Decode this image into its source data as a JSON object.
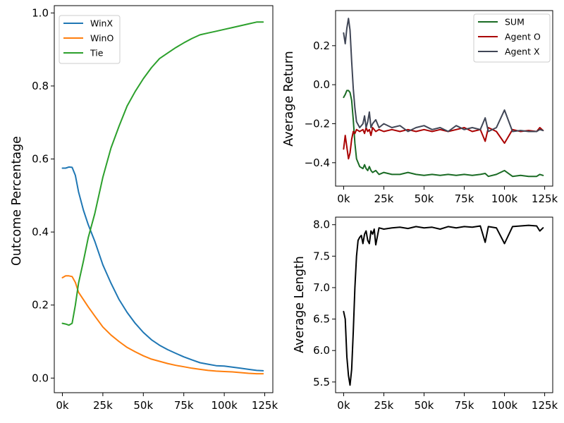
{
  "chart_data": [
    {
      "id": "outcomes",
      "type": "line",
      "xlabel": "",
      "ylabel": "Outcome Percentage",
      "xlim": [
        -5000,
        130000
      ],
      "ylim": [
        -0.04,
        1.02
      ],
      "xticks": [
        0,
        25000,
        50000,
        75000,
        100000,
        125000
      ],
      "xtick_labels": [
        "0k",
        "25k",
        "50k",
        "75k",
        "100k",
        "125k"
      ],
      "yticks": [
        0.0,
        0.2,
        0.4,
        0.6,
        0.8,
        1.0
      ],
      "ytick_labels": [
        "0.0",
        "0.2",
        "0.4",
        "0.6",
        "0.8",
        "1.0"
      ],
      "legend_position": "top-left",
      "series": [
        {
          "name": "WinX",
          "color": "#1f77b4",
          "x": [
            0,
            2000,
            4000,
            6000,
            8000,
            10000,
            13000,
            16000,
            20000,
            25000,
            30000,
            35000,
            40000,
            45000,
            50000,
            55000,
            60000,
            65000,
            70000,
            75000,
            80000,
            85000,
            90000,
            95000,
            100000,
            105000,
            110000,
            115000,
            120000,
            124000
          ],
          "y": [
            0.575,
            0.575,
            0.578,
            0.577,
            0.555,
            0.51,
            0.46,
            0.42,
            0.375,
            0.31,
            0.26,
            0.215,
            0.18,
            0.15,
            0.125,
            0.105,
            0.09,
            0.078,
            0.068,
            0.058,
            0.05,
            0.042,
            0.038,
            0.034,
            0.033,
            0.03,
            0.027,
            0.024,
            0.021,
            0.02
          ]
        },
        {
          "name": "WinO",
          "color": "#ff7f0e",
          "x": [
            0,
            2000,
            4000,
            6000,
            8000,
            10000,
            13000,
            16000,
            20000,
            25000,
            30000,
            35000,
            40000,
            45000,
            50000,
            55000,
            60000,
            65000,
            70000,
            75000,
            80000,
            85000,
            90000,
            95000,
            100000,
            105000,
            110000,
            115000,
            120000,
            124000
          ],
          "y": [
            0.275,
            0.28,
            0.28,
            0.278,
            0.262,
            0.235,
            0.215,
            0.195,
            0.17,
            0.14,
            0.118,
            0.1,
            0.084,
            0.072,
            0.061,
            0.052,
            0.046,
            0.04,
            0.035,
            0.031,
            0.027,
            0.024,
            0.021,
            0.019,
            0.018,
            0.017,
            0.015,
            0.013,
            0.012,
            0.012
          ]
        },
        {
          "name": "Tie",
          "color": "#2ca02c",
          "x": [
            0,
            2000,
            4000,
            6000,
            8000,
            10000,
            13000,
            16000,
            20000,
            25000,
            30000,
            35000,
            40000,
            45000,
            50000,
            55000,
            60000,
            65000,
            70000,
            75000,
            80000,
            85000,
            90000,
            95000,
            100000,
            105000,
            110000,
            115000,
            120000,
            124000
          ],
          "y": [
            0.15,
            0.148,
            0.145,
            0.15,
            0.2,
            0.26,
            0.32,
            0.385,
            0.45,
            0.55,
            0.63,
            0.69,
            0.745,
            0.785,
            0.82,
            0.85,
            0.875,
            0.89,
            0.905,
            0.918,
            0.93,
            0.94,
            0.945,
            0.95,
            0.955,
            0.96,
            0.965,
            0.97,
            0.975,
            0.975
          ]
        }
      ]
    },
    {
      "id": "return",
      "type": "line",
      "xlabel": "",
      "ylabel": "Average Return",
      "xlim": [
        -5000,
        130000
      ],
      "ylim": [
        -0.52,
        0.38
      ],
      "xticks": [
        0,
        25000,
        50000,
        75000,
        100000,
        125000
      ],
      "xtick_labels": [
        "0k",
        "25k",
        "50k",
        "75k",
        "100k",
        "125k"
      ],
      "yticks": [
        -0.4,
        -0.2,
        0.0,
        0.2
      ],
      "ytick_labels": [
        "−0.4",
        "−0.2",
        "0.0",
        "0.2"
      ],
      "legend_position": "top-right",
      "series": [
        {
          "name": "SUM",
          "color": "#1a6b24",
          "x": [
            0,
            1000,
            2000,
            3000,
            4000,
            5000,
            6000,
            7000,
            8000,
            10000,
            12000,
            13000,
            14000,
            15000,
            16000,
            17000,
            18000,
            20000,
            22000,
            25000,
            30000,
            35000,
            40000,
            45000,
            50000,
            55000,
            60000,
            65000,
            70000,
            75000,
            80000,
            85000,
            88000,
            90000,
            95000,
            100000,
            105000,
            110000,
            115000,
            120000,
            122000,
            124000
          ],
          "y": [
            -0.065,
            -0.05,
            -0.03,
            -0.03,
            -0.04,
            -0.08,
            -0.18,
            -0.3,
            -0.38,
            -0.42,
            -0.43,
            -0.41,
            -0.43,
            -0.44,
            -0.42,
            -0.44,
            -0.45,
            -0.44,
            -0.46,
            -0.45,
            -0.46,
            -0.46,
            -0.45,
            -0.46,
            -0.465,
            -0.46,
            -0.465,
            -0.46,
            -0.465,
            -0.46,
            -0.465,
            -0.46,
            -0.455,
            -0.47,
            -0.46,
            -0.44,
            -0.47,
            -0.465,
            -0.47,
            -0.47,
            -0.46,
            -0.465
          ]
        },
        {
          "name": "Agent O",
          "color": "#aa0000",
          "x": [
            0,
            1000,
            2000,
            3000,
            4000,
            5000,
            6000,
            7000,
            8000,
            10000,
            12000,
            13000,
            14000,
            15000,
            16000,
            17000,
            18000,
            20000,
            22000,
            25000,
            30000,
            35000,
            40000,
            45000,
            50000,
            55000,
            60000,
            65000,
            70000,
            75000,
            80000,
            85000,
            88000,
            90000,
            95000,
            100000,
            105000,
            110000,
            115000,
            120000,
            122000,
            124000
          ],
          "y": [
            -0.33,
            -0.26,
            -0.32,
            -0.38,
            -0.35,
            -0.28,
            -0.24,
            -0.25,
            -0.23,
            -0.24,
            -0.23,
            -0.25,
            -0.22,
            -0.24,
            -0.23,
            -0.26,
            -0.22,
            -0.24,
            -0.23,
            -0.24,
            -0.23,
            -0.24,
            -0.23,
            -0.24,
            -0.23,
            -0.24,
            -0.23,
            -0.24,
            -0.23,
            -0.22,
            -0.24,
            -0.23,
            -0.29,
            -0.22,
            -0.24,
            -0.3,
            -0.23,
            -0.24,
            -0.235,
            -0.24,
            -0.22,
            -0.235
          ]
        },
        {
          "name": "Agent X",
          "color": "#404656",
          "x": [
            0,
            1000,
            2000,
            3000,
            4000,
            5000,
            6000,
            7000,
            8000,
            10000,
            12000,
            13000,
            14000,
            15000,
            16000,
            17000,
            18000,
            20000,
            22000,
            25000,
            30000,
            35000,
            40000,
            45000,
            50000,
            55000,
            60000,
            65000,
            70000,
            75000,
            80000,
            85000,
            88000,
            90000,
            95000,
            100000,
            105000,
            110000,
            115000,
            120000,
            122000,
            124000
          ],
          "y": [
            0.265,
            0.21,
            0.29,
            0.34,
            0.28,
            0.12,
            -0.02,
            -0.12,
            -0.19,
            -0.22,
            -0.2,
            -0.16,
            -0.22,
            -0.19,
            -0.14,
            -0.22,
            -0.2,
            -0.18,
            -0.22,
            -0.2,
            -0.22,
            -0.21,
            -0.24,
            -0.22,
            -0.21,
            -0.23,
            -0.22,
            -0.24,
            -0.21,
            -0.23,
            -0.22,
            -0.23,
            -0.17,
            -0.24,
            -0.22,
            -0.13,
            -0.24,
            -0.235,
            -0.24,
            -0.24,
            -0.23,
            -0.235
          ]
        }
      ]
    },
    {
      "id": "length",
      "type": "line",
      "xlabel": "",
      "ylabel": "Average Length",
      "xlim": [
        -5000,
        130000
      ],
      "ylim": [
        5.33,
        8.12
      ],
      "xticks": [
        0,
        25000,
        50000,
        75000,
        100000,
        125000
      ],
      "xtick_labels": [
        "0k",
        "25k",
        "50k",
        "75k",
        "100k",
        "125k"
      ],
      "yticks": [
        5.5,
        6.0,
        6.5,
        7.0,
        7.5,
        8.0
      ],
      "ytick_labels": [
        "5.5",
        "6.0",
        "6.5",
        "7.0",
        "7.5",
        "8.0"
      ],
      "legend_position": "none",
      "series": [
        {
          "name": "",
          "color": "#000000",
          "x": [
            0,
            1000,
            2000,
            3000,
            4000,
            5000,
            6000,
            7000,
            8000,
            9000,
            10000,
            11000,
            12000,
            13000,
            14000,
            15000,
            16000,
            17000,
            18000,
            19000,
            20000,
            22000,
            25000,
            30000,
            35000,
            40000,
            45000,
            50000,
            55000,
            60000,
            65000,
            70000,
            75000,
            80000,
            85000,
            88000,
            90000,
            95000,
            100000,
            105000,
            110000,
            115000,
            120000,
            122000,
            124000
          ],
          "y": [
            6.62,
            6.5,
            5.9,
            5.6,
            5.45,
            5.7,
            6.3,
            7.0,
            7.5,
            7.75,
            7.8,
            7.83,
            7.7,
            7.85,
            7.9,
            7.75,
            7.7,
            7.9,
            7.85,
            7.93,
            7.68,
            7.95,
            7.93,
            7.95,
            7.96,
            7.94,
            7.97,
            7.95,
            7.96,
            7.93,
            7.97,
            7.95,
            7.97,
            7.96,
            7.98,
            7.72,
            7.97,
            7.95,
            7.7,
            7.97,
            7.98,
            7.99,
            7.98,
            7.9,
            7.95
          ]
        }
      ]
    }
  ]
}
